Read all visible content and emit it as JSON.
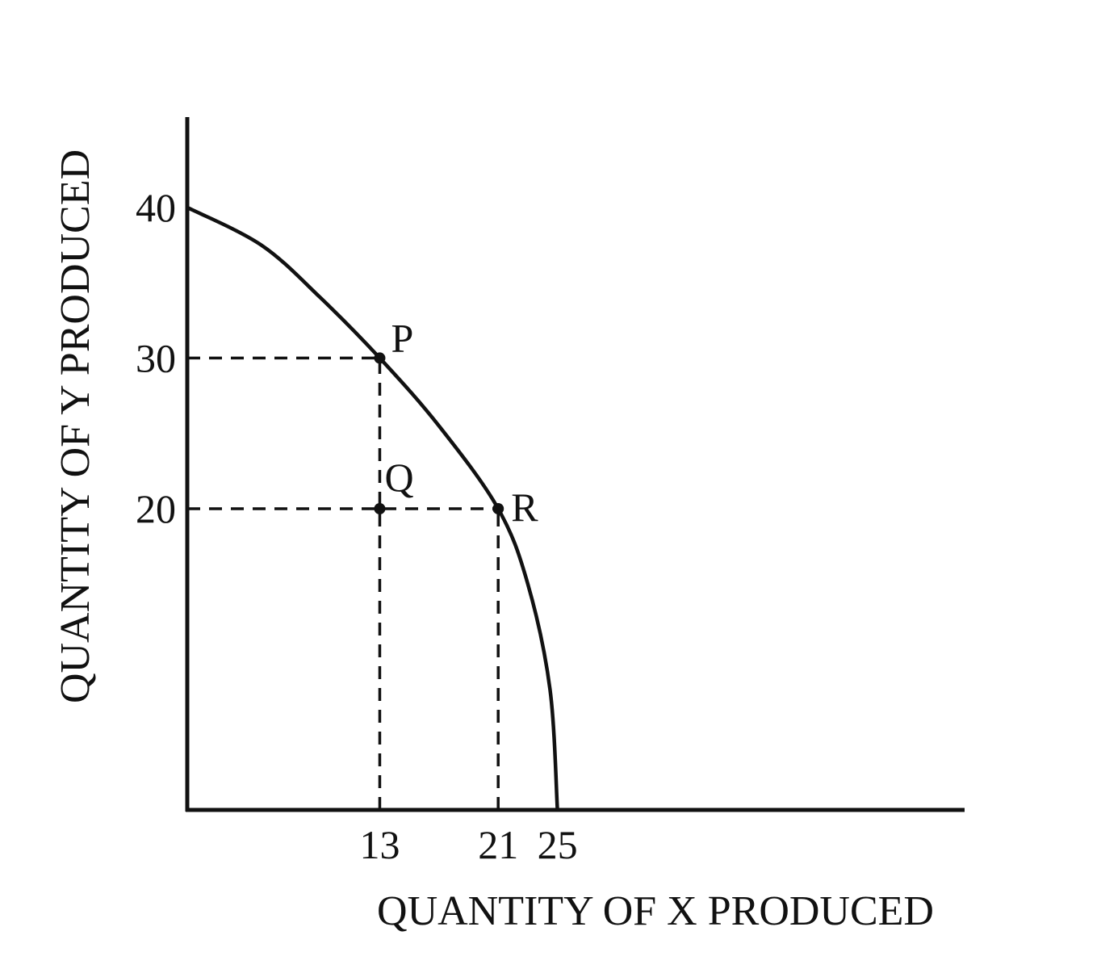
{
  "chart_data": {
    "type": "line",
    "title": "",
    "xlabel": "QUANTITY OF X PRODUCED",
    "ylabel": "QUANTITY OF Y PRODUCED",
    "xlim": [
      0,
      52.5
    ],
    "ylim": [
      0,
      46
    ],
    "x_ticks": [
      13,
      21,
      25
    ],
    "y_ticks": [
      40,
      30,
      20
    ],
    "x_tick_labels": [
      "13",
      "21",
      "25"
    ],
    "y_tick_labels": [
      "40",
      "30",
      "20"
    ],
    "grid": false,
    "legend": "none",
    "series": [
      {
        "x": [
          0,
          5,
          9,
          13,
          17,
          21,
          23,
          24.5,
          25
        ],
        "y": [
          40,
          37.5,
          34,
          30,
          25.5,
          20,
          15,
          8,
          0
        ]
      }
    ],
    "points": [
      {
        "label": "P",
        "x": 13,
        "y": 30
      },
      {
        "label": "Q",
        "x": 13,
        "y": 20
      },
      {
        "label": "R",
        "x": 21,
        "y": 20
      }
    ],
    "guides": [
      {
        "from": [
          0,
          30
        ],
        "to": [
          13,
          30
        ]
      },
      {
        "from": [
          0,
          20
        ],
        "to": [
          21,
          20
        ]
      },
      {
        "from": [
          13,
          0
        ],
        "to": [
          13,
          30
        ]
      },
      {
        "from": [
          21,
          0
        ],
        "to": [
          21,
          20
        ]
      }
    ],
    "colors": {
      "line": "#111111",
      "background": "#ffffff"
    }
  }
}
